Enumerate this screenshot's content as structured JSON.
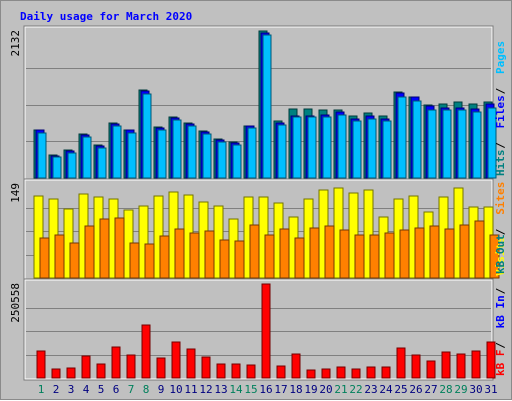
{
  "chart_data": {
    "type": "bar",
    "title": "Daily usage for March 2020",
    "title_color": "#0000ff",
    "background": "#c0c0c0",
    "days": [
      "1",
      "2",
      "3",
      "4",
      "5",
      "6",
      "7",
      "8",
      "9",
      "10",
      "11",
      "12",
      "13",
      "14",
      "15",
      "16",
      "17",
      "18",
      "19",
      "20",
      "21",
      "22",
      "23",
      "24",
      "25",
      "26",
      "27",
      "28",
      "29",
      "30",
      "31"
    ],
    "weekend_days": [
      1,
      7,
      8,
      14,
      15,
      21,
      22,
      28,
      29
    ],
    "weekday_label_color": "#000080",
    "weekend_label_color": "#00805c",
    "panels": [
      {
        "id": "hits-files-pages",
        "max_label": "2132",
        "ylim": [
          0,
          2132
        ],
        "series": [
          {
            "name": "Hits",
            "color": "#008080",
            "values": [
              700,
              330,
              400,
              640,
              480,
              800,
              700,
              1270,
              740,
              880,
              800,
              680,
              560,
              520,
              760,
              2132,
              820,
              1000,
              1000,
              980,
              980,
              900,
              940,
              900,
              1250,
              1180,
              1060,
              1080,
              1100,
              1080,
              1100
            ]
          },
          {
            "name": "Files",
            "color": "#0000ff",
            "values": [
              690,
              320,
              390,
              630,
              470,
              790,
              690,
              1260,
              730,
              870,
              790,
              670,
              550,
              510,
              750,
              2110,
              800,
              900,
              900,
              920,
              950,
              860,
              900,
              860,
              1240,
              1170,
              1040,
              1020,
              1020,
              1000,
              1080
            ]
          },
          {
            "name": "Pages",
            "color": "#00bfff",
            "values": [
              650,
              300,
              360,
              600,
              440,
              750,
              650,
              1220,
              700,
              840,
              760,
              640,
              520,
              480,
              720,
              2070,
              770,
              880,
              880,
              890,
              920,
              830,
              860,
              830,
              1180,
              1120,
              990,
              980,
              990,
              960,
              1020
            ]
          }
        ],
        "legend": [
          {
            "text": "Hits",
            "color": "#008080"
          },
          {
            "text": "Files",
            "color": "#0000ff"
          },
          {
            "text": "Pages",
            "color": "#00bfff"
          }
        ]
      },
      {
        "id": "visits-sites",
        "max_label": "149",
        "ylim": [
          0,
          149
        ],
        "series": [
          {
            "name": "Visits",
            "color": "#ffff00",
            "values": [
              130,
              126,
              110,
              133,
              128,
              126,
              108,
              114,
              130,
              137,
              132,
              120,
              114,
              94,
              128,
              128,
              119,
              96,
              126,
              140,
              143,
              134,
              140,
              96,
              126,
              130,
              104,
              128,
              142,
              112,
              112
            ]
          },
          {
            "name": "Sites",
            "color": "#ff8000",
            "values": [
              64,
              68,
              56,
              82,
              94,
              95,
              56,
              54,
              66,
              78,
              72,
              74,
              60,
              58,
              84,
              68,
              78,
              63,
              80,
              82,
              76,
              68,
              68,
              72,
              76,
              80,
              82,
              78,
              84,
              90,
              68
            ]
          }
        ],
        "legend": [
          {
            "text": "Visits",
            "color": "#ffff00"
          },
          {
            "text": "Sites",
            "color": "#ff8000"
          }
        ]
      },
      {
        "id": "kbytes",
        "max_label": "250558",
        "ylim": [
          0,
          250558
        ],
        "series": [
          {
            "name": "KBytes",
            "color": "#ff0000",
            "values": [
              72000,
              25000,
              26000,
              58000,
              38000,
              82000,
              62000,
              140000,
              52000,
              95000,
              78000,
              56000,
              38000,
              36000,
              34000,
              250558,
              33000,
              63000,
              20000,
              23000,
              29000,
              24000,
              29000,
              30000,
              80000,
              62000,
              44000,
              70000,
              63000,
              73000,
              95000
            ]
          }
        ],
        "legend": [
          {
            "text": "kB F",
            "color": "#ff0000"
          },
          {
            "text": "kB In",
            "color": "#0000ff"
          },
          {
            "text": "kB Out",
            "color": "#008080"
          }
        ]
      }
    ]
  }
}
